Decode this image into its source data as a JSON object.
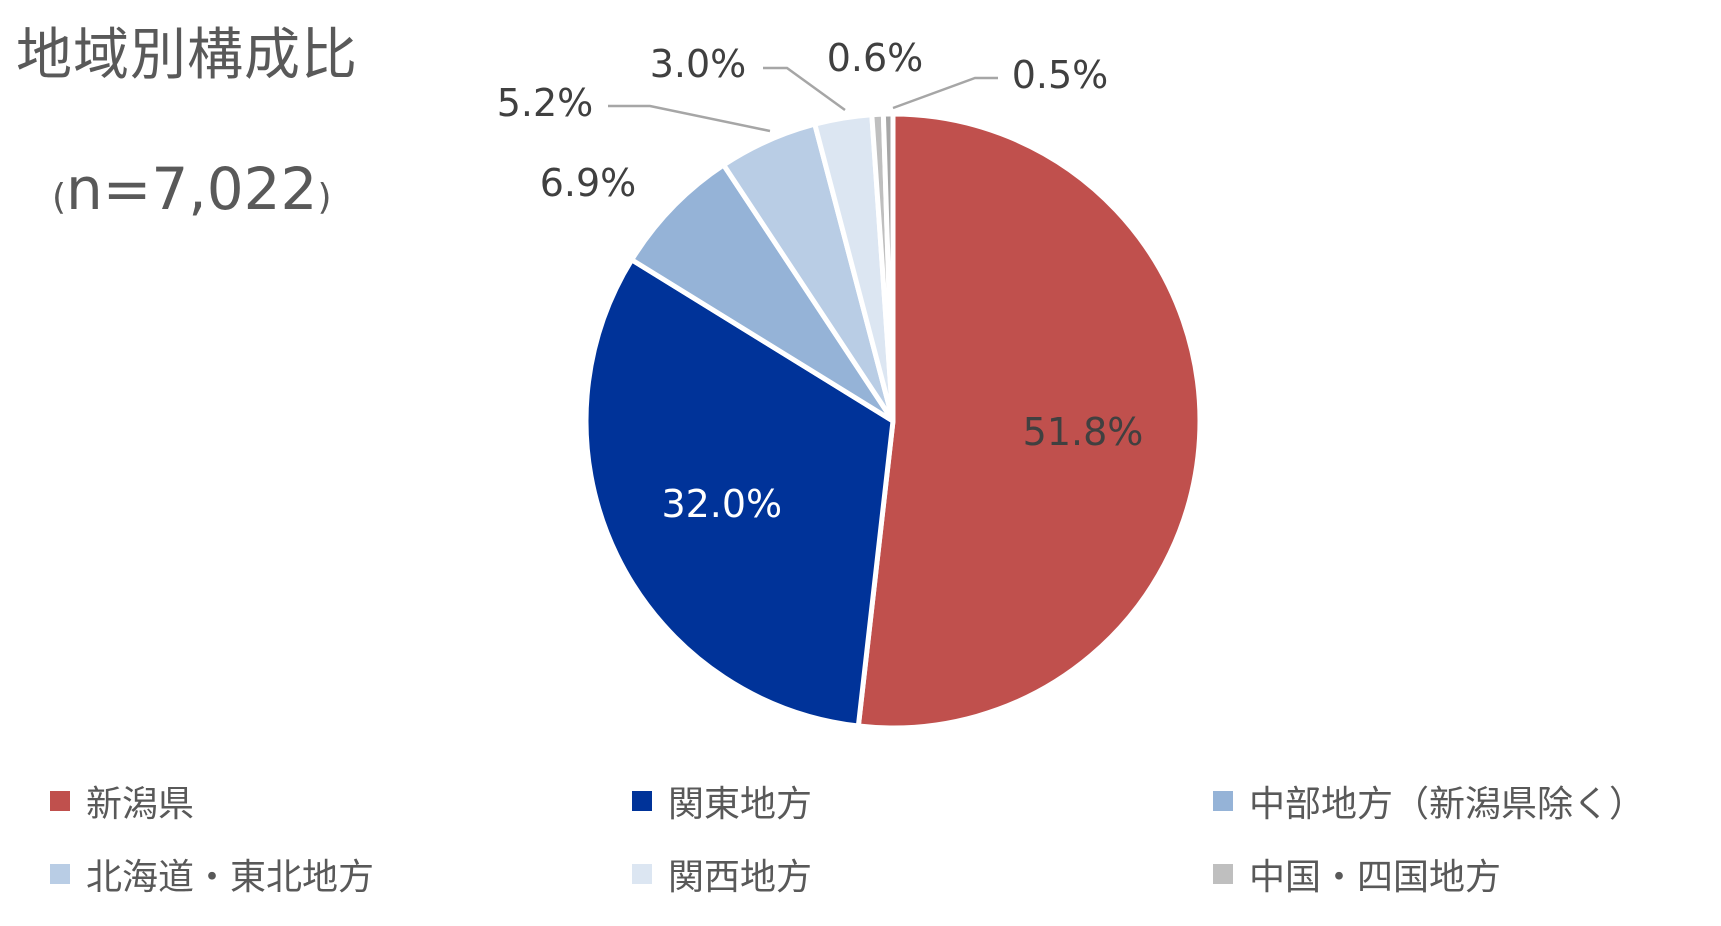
{
  "chart_data": {
    "type": "pie",
    "title": "地域別構成比",
    "subtitle_open": "(",
    "subtitle_value": "n=7,022",
    "subtitle_close": ")",
    "slices": [
      {
        "name": "新潟県",
        "value": 51.8,
        "label": "51.8%",
        "color": "#C0504D",
        "label_color": "#404040"
      },
      {
        "name": "関東地方",
        "value": 32.0,
        "label": "32.0%",
        "color": "#003399",
        "label_color": "#FFFFFF"
      },
      {
        "name": "中部地方（新潟県除く）",
        "value": 6.9,
        "label": "6.9%",
        "color": "#95B3D7",
        "label_color": "#404040"
      },
      {
        "name": "北海道・東北地方",
        "value": 5.2,
        "label": "5.2%",
        "color": "#B9CDE5",
        "label_color": "#404040"
      },
      {
        "name": "関西地方",
        "value": 3.0,
        "label": "3.0%",
        "color": "#DCE6F2",
        "label_color": "#404040"
      },
      {
        "name": "中国・四国地方",
        "value": 0.6,
        "label": "0.6%",
        "color": "#BFBFBF",
        "label_color": "#404040"
      },
      {
        "name": "",
        "value": 0.5,
        "label": "0.5%",
        "color": "#A6A6A6",
        "label_color": "#404040"
      }
    ],
    "legend": [
      {
        "name": "新潟県",
        "color": "#C0504D"
      },
      {
        "name": "関東地方",
        "color": "#003399"
      },
      {
        "name": "中部地方（新潟県除く）",
        "color": "#95B3D7"
      },
      {
        "name": "北海道・東北地方",
        "color": "#B9CDE5"
      },
      {
        "name": "関西地方",
        "color": "#DCE6F2"
      },
      {
        "name": "中国・四国地方",
        "color": "#BFBFBF"
      }
    ],
    "legend_position": "bottom"
  }
}
